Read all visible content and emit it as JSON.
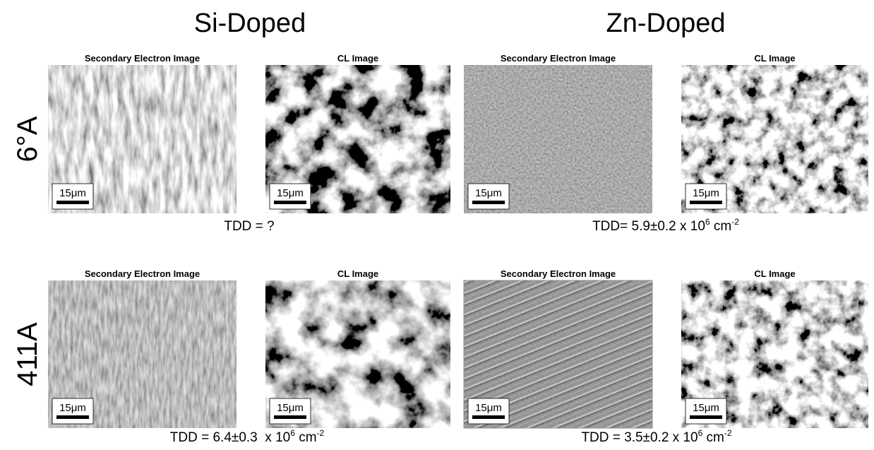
{
  "columns": [
    {
      "title": "Si-Doped"
    },
    {
      "title": "Zn-Doped"
    }
  ],
  "rows": [
    {
      "label": "6°A",
      "panels": [
        {
          "title": "Secondary Electron Image",
          "scale": "15μm"
        },
        {
          "title": "CL Image",
          "scale": "15μm"
        },
        {
          "title": "Secondary Electron Image",
          "scale": "15μm"
        },
        {
          "title": "CL Image",
          "scale": "15μm"
        }
      ],
      "tdd": [
        {
          "text": "TDD = ?"
        },
        {
          "text": "TDD= 5.9±0.2 x 10",
          "exp": "6",
          "unit": " cm",
          "unit_exp": "-2"
        }
      ]
    },
    {
      "label": "411A",
      "panels": [
        {
          "title": "Secondary Electron Image",
          "scale": "15μm"
        },
        {
          "title": "CL Image",
          "scale": "15μm"
        },
        {
          "title": "Secondary Electron Image",
          "scale": "15μm"
        },
        {
          "title": "CL Image",
          "scale": "15μm"
        }
      ],
      "tdd": [
        {
          "text": "TDD = 6.4±0.3  x 10",
          "exp": "6",
          "unit": " cm",
          "unit_exp": "-2"
        },
        {
          "text": "TDD = 3.5±0.2 x 10",
          "exp": "6",
          "unit": " cm",
          "unit_exp": "-2"
        }
      ]
    }
  ]
}
